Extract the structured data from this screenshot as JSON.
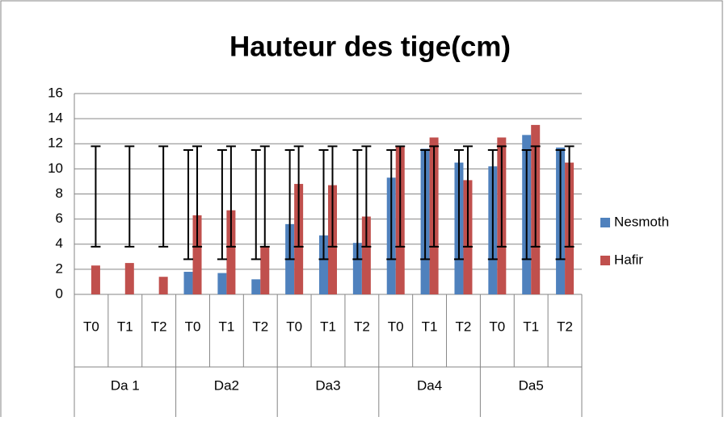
{
  "chart_data": {
    "type": "bar",
    "title": "Hauteur des tige(cm)",
    "groups": [
      {
        "name": "Da 1",
        "categories": [
          "T0",
          "T1",
          "T2"
        ]
      },
      {
        "name": "Da2",
        "categories": [
          "T0",
          "T1",
          "T2"
        ]
      },
      {
        "name": "Da3",
        "categories": [
          "T0",
          "T1",
          "T2"
        ]
      },
      {
        "name": "Da4",
        "categories": [
          "T0",
          "T1",
          "T2"
        ]
      },
      {
        "name": "Da5",
        "categories": [
          "T0",
          "T1",
          "T2"
        ]
      }
    ],
    "series": [
      {
        "name": "Nesmoth",
        "color": "#4f81bd",
        "values": [
          null,
          null,
          null,
          1.8,
          1.7,
          1.2,
          5.6,
          4.7,
          4.1,
          9.3,
          11.6,
          10.5,
          10.2,
          12.7,
          11.7
        ],
        "error_bar_range": [
          2.8,
          11.5
        ]
      },
      {
        "name": "Hafir",
        "color": "#c0504d",
        "values": [
          2.3,
          2.5,
          1.4,
          6.3,
          6.7,
          3.8,
          8.8,
          8.7,
          6.2,
          11.8,
          12.5,
          9.1,
          12.5,
          13.5,
          10.5
        ],
        "error_bar_range": [
          3.8,
          11.8
        ]
      }
    ],
    "ylim": [
      0,
      16
    ],
    "yticks": [
      0,
      2,
      4,
      6,
      8,
      10,
      12,
      14,
      16
    ],
    "grid": true,
    "legend": "right"
  }
}
